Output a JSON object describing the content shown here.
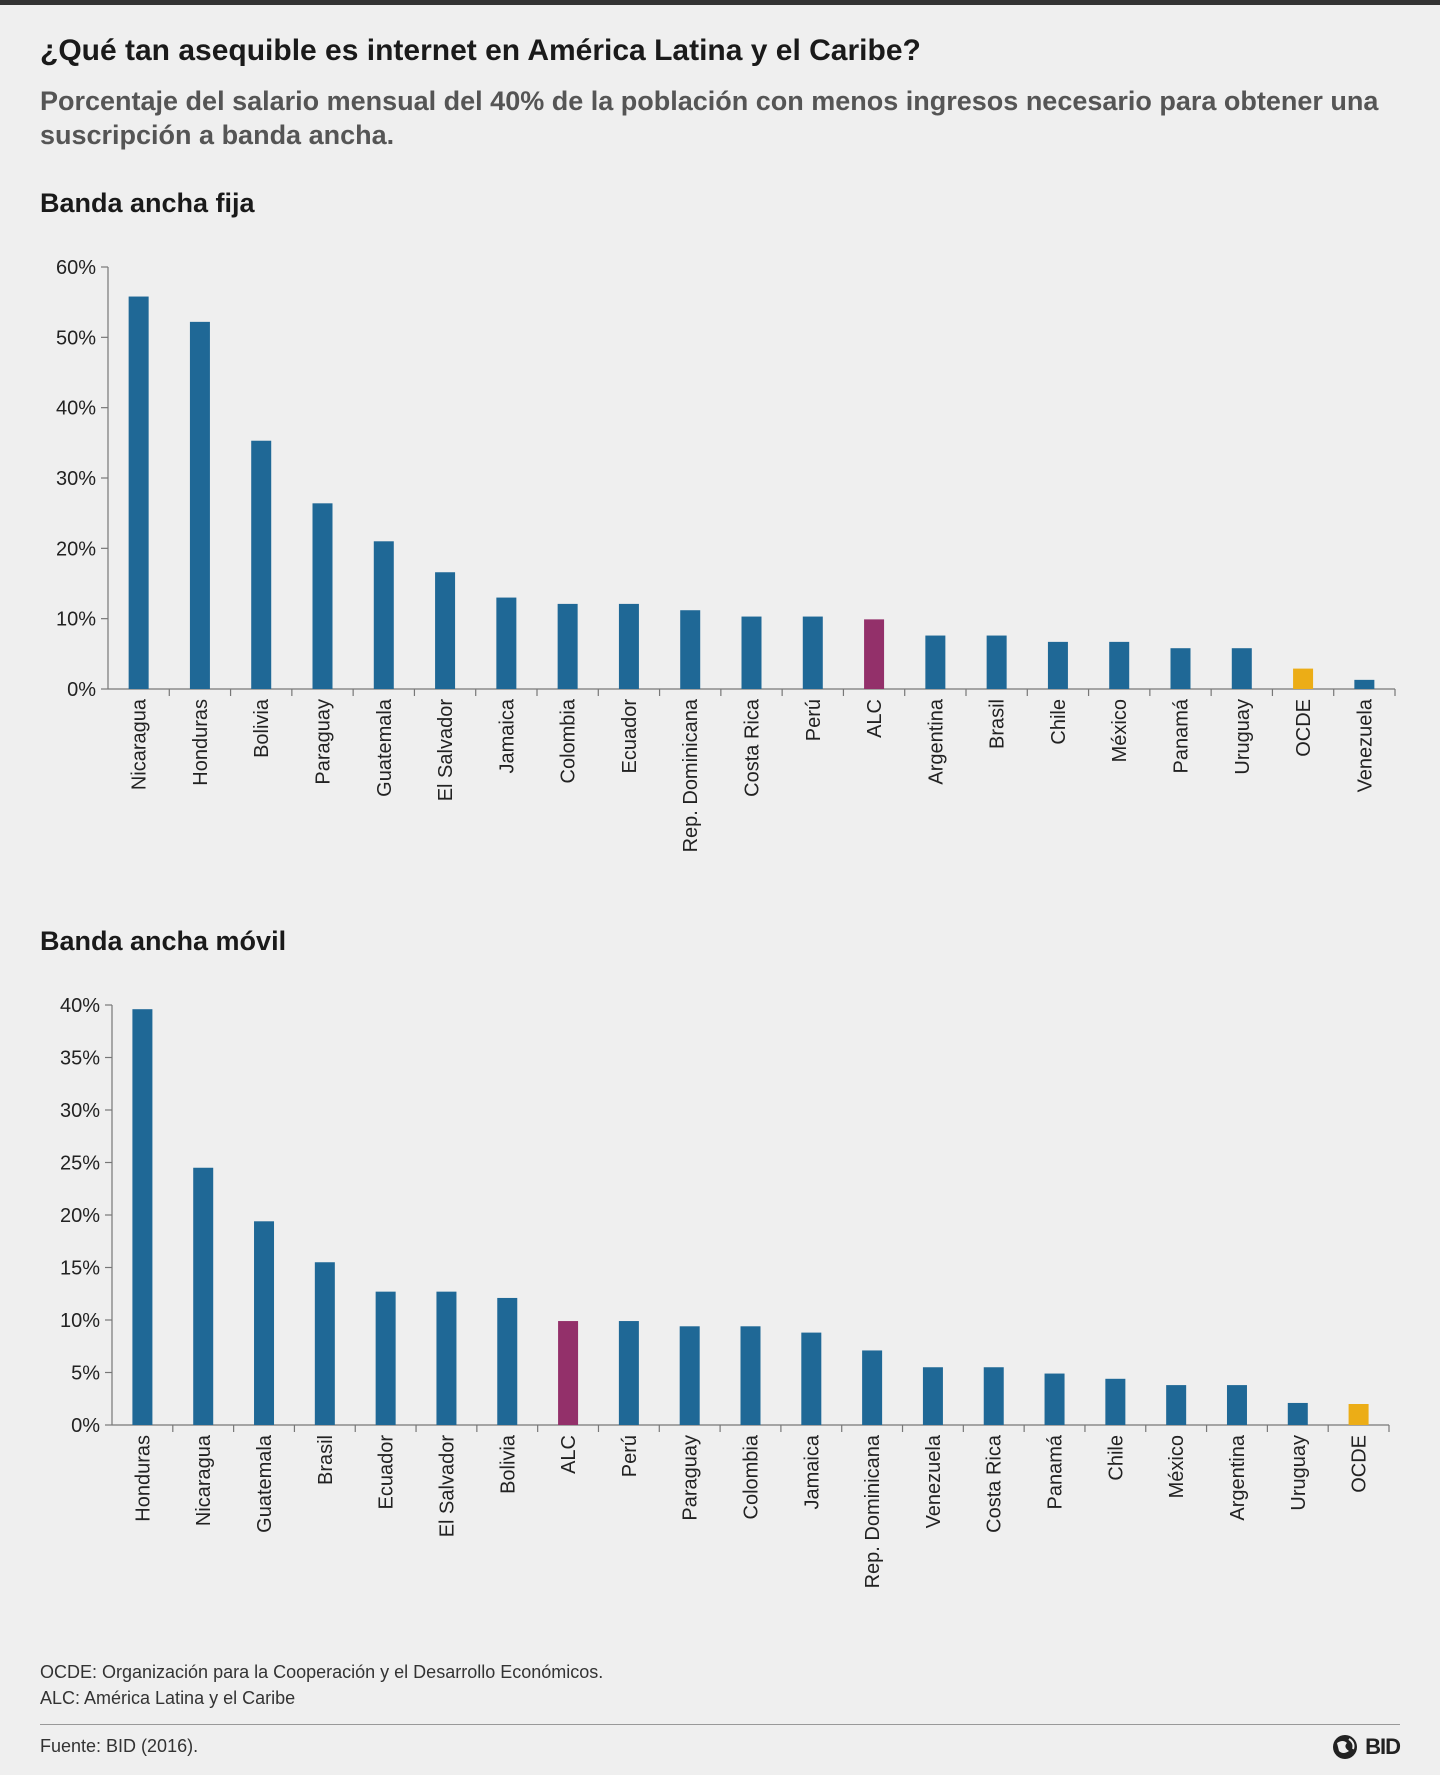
{
  "title": "¿Qué tan asequible es internet en América Latina y el Caribe?",
  "subtitle": "Porcentaje del salario mensual del 40% de la población con menos ingresos necesario para obtener una suscripción a banda ancha.",
  "colors": {
    "default": "#1f6896",
    "ALC": "#93306a",
    "OCDE": "#ecad16"
  },
  "chart_data": [
    {
      "type": "bar",
      "title": "Banda ancha fija",
      "xlabel": "",
      "ylabel": "",
      "ylim": [
        0,
        60
      ],
      "yticks": [
        0,
        10,
        20,
        30,
        40,
        50,
        60
      ],
      "ytick_labels": [
        "0%",
        "10%",
        "20%",
        "30%",
        "40%",
        "50%",
        "60%"
      ],
      "categories": [
        "Nicaragua",
        "Honduras",
        "Bolivia",
        "Paraguay",
        "Guatemala",
        "El Salvador",
        "Jamaica",
        "Colombia",
        "Ecuador",
        "Rep. Dominicana",
        "Costa Rica",
        "Perú",
        "ALC",
        "Argentina",
        "Brasil",
        "Chile",
        "México",
        "Panamá",
        "Uruguay",
        "OCDE",
        "Venezuela"
      ],
      "values": [
        55.8,
        52.2,
        35.3,
        26.4,
        21.0,
        16.6,
        13.0,
        12.1,
        12.1,
        11.2,
        10.3,
        10.3,
        9.9,
        7.6,
        7.6,
        6.7,
        6.7,
        5.8,
        5.8,
        2.9,
        1.3
      ]
    },
    {
      "type": "bar",
      "title": "Banda ancha móvil",
      "xlabel": "",
      "ylabel": "",
      "ylim": [
        0,
        40
      ],
      "yticks": [
        0,
        5,
        10,
        15,
        20,
        25,
        30,
        35,
        40
      ],
      "ytick_labels": [
        "0%",
        "5%",
        "10%",
        "15%",
        "20%",
        "25%",
        "30%",
        "35%",
        "40%"
      ],
      "categories": [
        "Honduras",
        "Nicaragua",
        "Guatemala",
        "Brasil",
        "Ecuador",
        "El Salvador",
        "Bolivia",
        "ALC",
        "Perú",
        "Paraguay",
        "Colombia",
        "Jamaica",
        "Rep. Dominicana",
        "Venezuela",
        "Costa Rica",
        "Panamá",
        "Chile",
        "México",
        "Argentina",
        "Uruguay",
        "OCDE"
      ],
      "values": [
        39.6,
        24.5,
        19.4,
        15.5,
        12.7,
        12.7,
        12.1,
        9.9,
        9.9,
        9.4,
        9.4,
        8.8,
        7.1,
        5.5,
        5.5,
        4.9,
        4.4,
        3.8,
        3.8,
        2.1,
        2.0
      ]
    }
  ],
  "footnotes": {
    "ocde": "OCDE:  Organización para la Cooperación y el Desarrollo Económicos.",
    "alc": "ALC: América Latina y el Caribe",
    "source": "Fuente: BID (2016)."
  },
  "logo": {
    "text": "BID"
  }
}
